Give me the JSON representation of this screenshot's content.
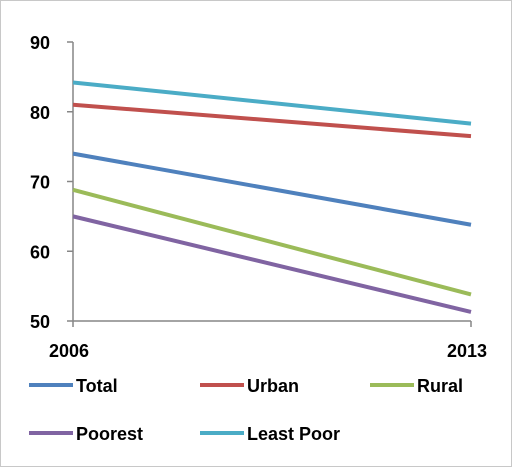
{
  "chart_data": {
    "type": "line",
    "x": [
      "2006",
      "2013"
    ],
    "ylim": [
      50,
      90
    ],
    "yticks": [
      "50",
      "60",
      "70",
      "80",
      "90"
    ],
    "grid": false,
    "legend": "bottom",
    "series": [
      {
        "name": "Total",
        "values": [
          74.0,
          63.8
        ],
        "color": "#4f81bd"
      },
      {
        "name": "Urban",
        "values": [
          81.0,
          76.5
        ],
        "color": "#c0504d"
      },
      {
        "name": "Rural",
        "values": [
          68.8,
          53.8
        ],
        "color": "#9bbb59"
      },
      {
        "name": "Poorest",
        "values": [
          65.0,
          51.3
        ],
        "color": "#8064a2"
      },
      {
        "name": "Least Poor",
        "values": [
          84.2,
          78.3
        ],
        "color": "#4bacc6"
      }
    ]
  }
}
